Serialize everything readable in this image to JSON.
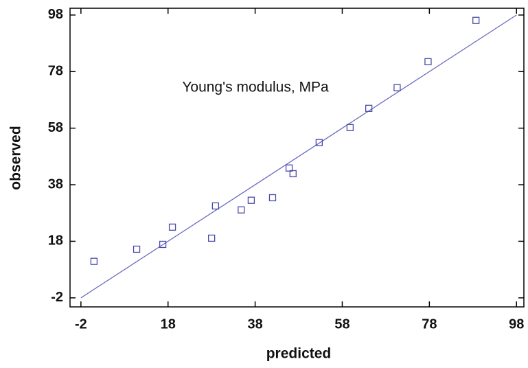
{
  "chart_data": {
    "type": "scatter",
    "annotation": "Young's modulus, MPa",
    "x_label": "predicted",
    "y_label": "observed",
    "series": [
      {
        "color": "#4a4aa8",
        "x": [
          1.0,
          10.8,
          16.8,
          19.0,
          28.0,
          28.9,
          34.8,
          37.1,
          42.0,
          45.8,
          46.7,
          52.7,
          59.8,
          64.1,
          70.6,
          77.7,
          88.7
        ],
        "values": [
          10.9,
          15.2,
          16.9,
          23.0,
          19.1,
          30.5,
          29.1,
          32.5,
          33.4,
          43.9,
          41.9,
          52.9,
          58.2,
          65.0,
          72.3,
          81.5,
          96.1
        ]
      }
    ],
    "fit_line": {
      "color": "#6a6ac0",
      "x": [
        -2,
        98
      ],
      "values": [
        -2,
        98
      ]
    },
    "xlim": [
      -4.5,
      99.7
    ],
    "ylim": [
      -5.2,
      100.4
    ],
    "xticks": [
      -2,
      18,
      38,
      58,
      78,
      98
    ],
    "yticks": [
      -2,
      18,
      38,
      58,
      78,
      98
    ]
  }
}
